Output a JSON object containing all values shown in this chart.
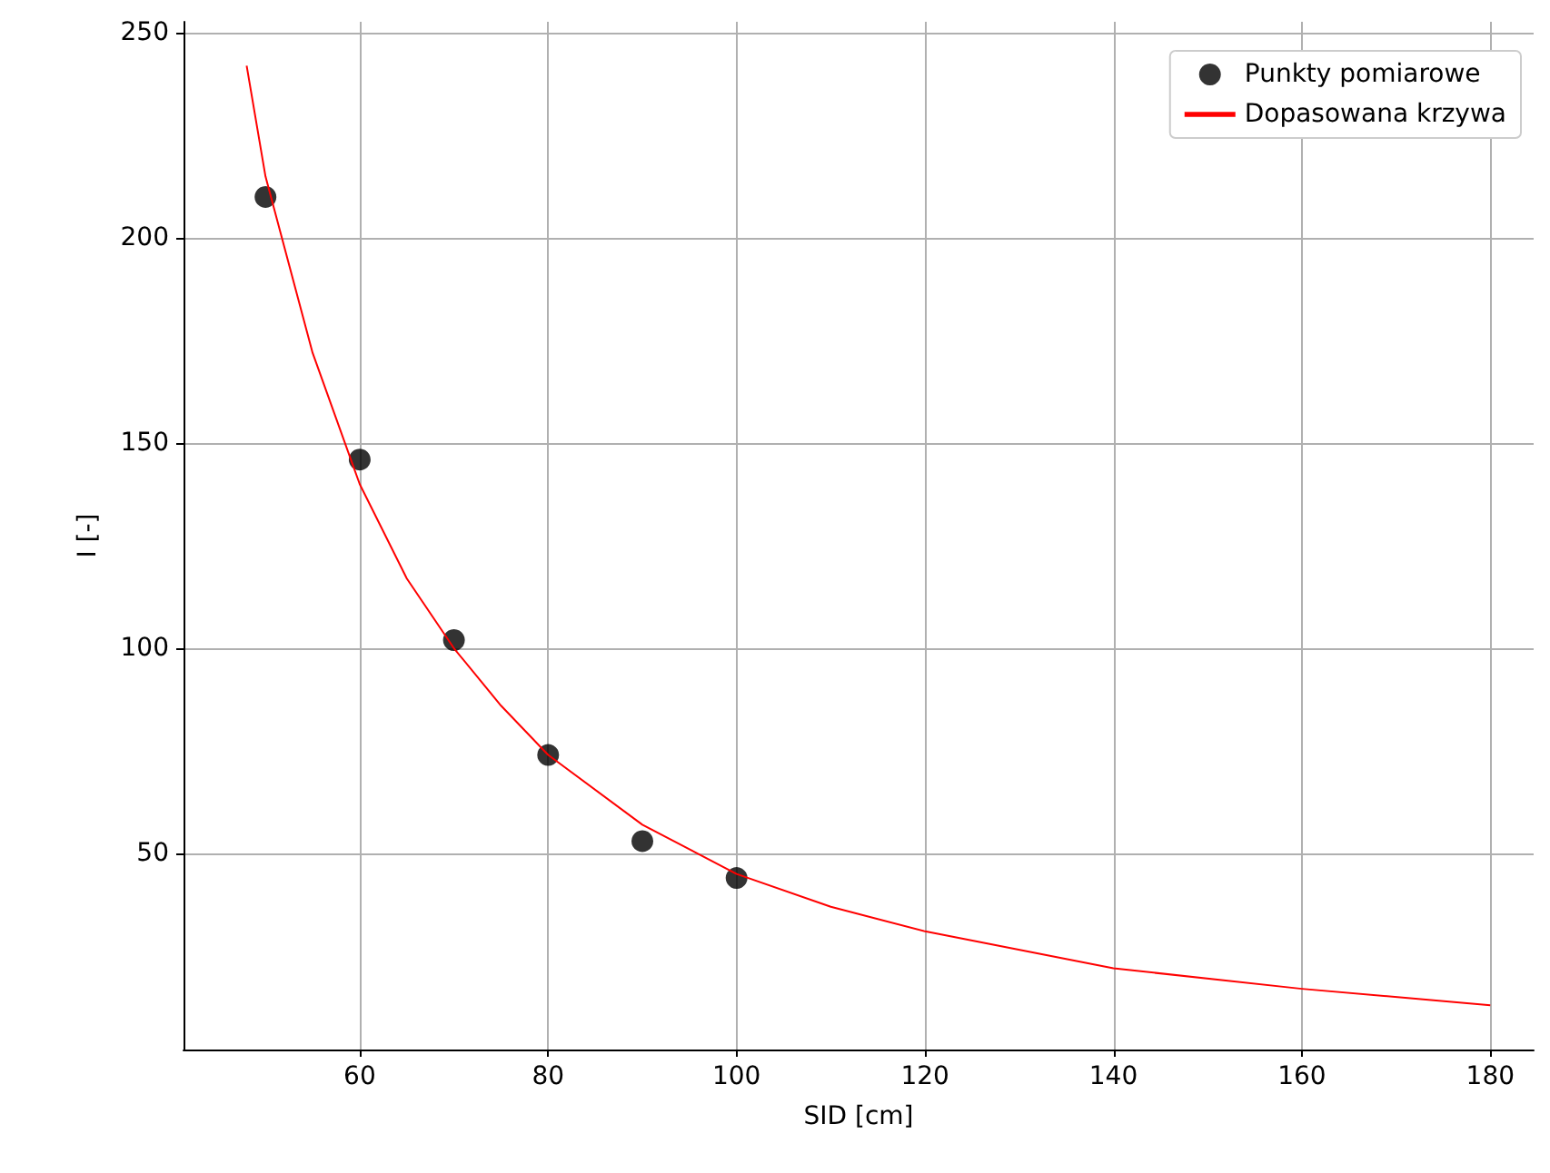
{
  "chart_data": {
    "type": "scatter",
    "xlabel": "SID [cm]",
    "ylabel": "I [-]",
    "xlim": [
      41.3,
      184.6
    ],
    "ylim": [
      2.2,
      252.7
    ],
    "xticks": [
      60,
      80,
      100,
      120,
      140,
      160,
      180
    ],
    "yticks": [
      50,
      100,
      150,
      200,
      250
    ],
    "grid": true,
    "legend": "top right",
    "series": [
      {
        "name": "Punkty pomiarowe",
        "color": "#000000",
        "marker": "circle",
        "x": [
          50,
          60,
          70,
          80,
          90,
          100
        ],
        "values": [
          210,
          146,
          102,
          74,
          53,
          44
        ]
      },
      {
        "name": "Dopasowana krzywa",
        "type": "line",
        "color": "#ff0000",
        "marker": "none",
        "line_style": "solid",
        "x": [
          48,
          50,
          55,
          60,
          65,
          70,
          75,
          80,
          90,
          100,
          110,
          120,
          140,
          160,
          180
        ],
        "values": [
          242,
          215,
          172,
          140,
          117,
          100,
          86,
          74,
          57,
          45,
          37,
          31,
          22,
          17,
          13
        ]
      }
    ]
  }
}
